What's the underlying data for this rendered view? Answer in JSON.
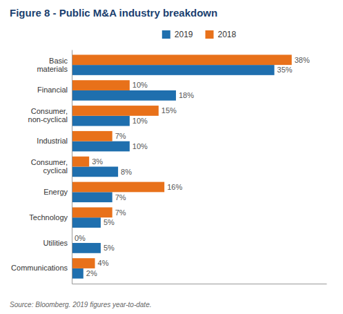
{
  "chart_data": {
    "type": "bar",
    "orientation": "horizontal",
    "title": "Figure 8 - Public M&A industry breakdown",
    "annotations": [
      "Source: Bloomberg. 2019 figures year-to-date."
    ],
    "categories": [
      "Basic\nmaterials",
      "Financial",
      "Consumer,\nnon-cyclical",
      "Industrial",
      "Consumer,\ncyclical",
      "Energy",
      "Technology",
      "Utilities",
      "Communications"
    ],
    "series": [
      {
        "name": "2019",
        "color": "#1F6FAE",
        "values": [
          35,
          18,
          10,
          10,
          8,
          7,
          5,
          5,
          2
        ],
        "value_labels": [
          "35%",
          "18%",
          "10%",
          "10%",
          "8%",
          "7%",
          "5%",
          "5%",
          "2%"
        ]
      },
      {
        "name": "2018",
        "color": "#E8711A",
        "values": [
          38,
          10,
          15,
          7,
          3,
          16,
          7,
          0,
          4
        ],
        "value_labels": [
          "38%",
          "10%",
          "15%",
          "7%",
          "3%",
          "16%",
          "7%",
          "0%",
          "4%"
        ]
      }
    ],
    "xlim": [
      0,
      44
    ],
    "data_labels": true,
    "tick_labels": "y",
    "grid": false,
    "legend": "top"
  }
}
